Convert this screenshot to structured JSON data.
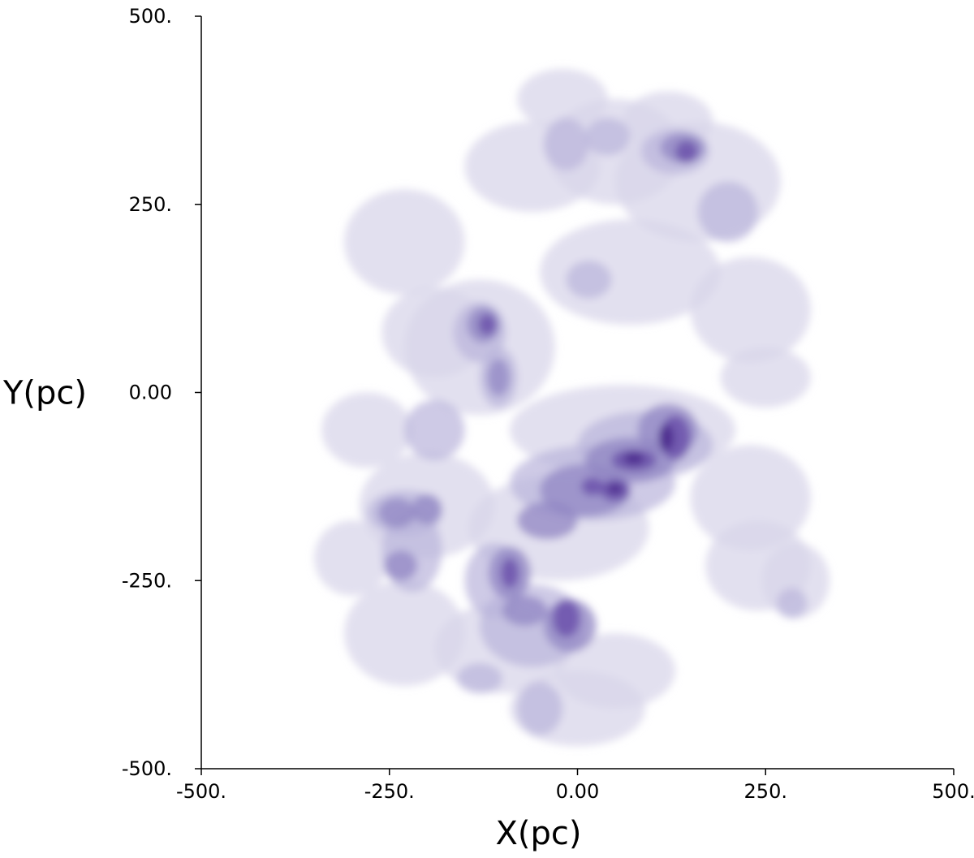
{
  "chart_data": {
    "type": "heatmap",
    "title": "",
    "xlabel": "X(pc)",
    "ylabel": "Y(pc)",
    "xlim": [
      -500,
      500
    ],
    "ylim": [
      -500,
      500
    ],
    "xticks": [
      -500,
      -250,
      0,
      250,
      500
    ],
    "xtick_labels": [
      "-500.",
      "-250.",
      "0.00",
      "250.",
      "500."
    ],
    "yticks": [
      500,
      250,
      0,
      -250,
      -500
    ],
    "ytick_labels": [
      "500.",
      "250.",
      "0.00",
      "-250.",
      "-500."
    ],
    "grid": false,
    "colormap": [
      "#ececec",
      "#d8d6ea",
      "#b9b3dc",
      "#9085c3",
      "#6c54ac",
      "#4d2c8f"
    ],
    "density_levels": [
      1,
      2,
      3,
      4,
      5
    ],
    "blobs": [
      {
        "x": -25,
        "y": -180,
        "sx": 120,
        "sy": 70,
        "level": 1
      },
      {
        "x": 60,
        "y": -50,
        "sx": 150,
        "sy": 60,
        "level": 1
      },
      {
        "x": -200,
        "y": -150,
        "sx": 90,
        "sy": 70,
        "level": 1
      },
      {
        "x": -100,
        "y": -340,
        "sx": 90,
        "sy": 60,
        "level": 1
      },
      {
        "x": -230,
        "y": -320,
        "sx": 80,
        "sy": 70,
        "level": 1
      },
      {
        "x": 50,
        "y": -370,
        "sx": 80,
        "sy": 50,
        "level": 1
      },
      {
        "x": 0,
        "y": -420,
        "sx": 90,
        "sy": 50,
        "level": 1
      },
      {
        "x": -130,
        "y": 60,
        "sx": 100,
        "sy": 90,
        "level": 1
      },
      {
        "x": 70,
        "y": 160,
        "sx": 120,
        "sy": 70,
        "level": 1
      },
      {
        "x": -60,
        "y": 300,
        "sx": 90,
        "sy": 60,
        "level": 1
      },
      {
        "x": 50,
        "y": 320,
        "sx": 90,
        "sy": 70,
        "level": 1
      },
      {
        "x": 160,
        "y": 280,
        "sx": 110,
        "sy": 80,
        "level": 1
      },
      {
        "x": -230,
        "y": 200,
        "sx": 80,
        "sy": 70,
        "level": 1
      },
      {
        "x": -190,
        "y": 80,
        "sx": 70,
        "sy": 60,
        "level": 1
      },
      {
        "x": 230,
        "y": 110,
        "sx": 80,
        "sy": 70,
        "level": 1
      },
      {
        "x": 230,
        "y": -140,
        "sx": 80,
        "sy": 70,
        "level": 1
      },
      {
        "x": 240,
        "y": -230,
        "sx": 70,
        "sy": 60,
        "level": 1
      },
      {
        "x": -280,
        "y": -50,
        "sx": 60,
        "sy": 50,
        "level": 1
      },
      {
        "x": -20,
        "y": 390,
        "sx": 60,
        "sy": 40,
        "level": 1
      },
      {
        "x": 290,
        "y": -250,
        "sx": 45,
        "sy": 50,
        "level": 1
      },
      {
        "x": 250,
        "y": 20,
        "sx": 60,
        "sy": 40,
        "level": 1
      },
      {
        "x": -300,
        "y": -220,
        "sx": 50,
        "sy": 50,
        "level": 1
      },
      {
        "x": 120,
        "y": 360,
        "sx": 60,
        "sy": 40,
        "level": 1
      },
      {
        "x": 20,
        "y": -120,
        "sx": 110,
        "sy": 50,
        "level": 2
      },
      {
        "x": 90,
        "y": -70,
        "sx": 90,
        "sy": 45,
        "level": 2
      },
      {
        "x": -60,
        "y": -310,
        "sx": 70,
        "sy": 55,
        "level": 2
      },
      {
        "x": -110,
        "y": -250,
        "sx": 40,
        "sy": 50,
        "level": 2
      },
      {
        "x": -220,
        "y": -210,
        "sx": 40,
        "sy": 55,
        "level": 2
      },
      {
        "x": -230,
        "y": -160,
        "sx": 50,
        "sy": 30,
        "level": 2
      },
      {
        "x": -190,
        "y": -50,
        "sx": 40,
        "sy": 40,
        "level": 2
      },
      {
        "x": -130,
        "y": 80,
        "sx": 35,
        "sy": 40,
        "level": 2
      },
      {
        "x": -105,
        "y": 20,
        "sx": 25,
        "sy": 40,
        "level": 2
      },
      {
        "x": 130,
        "y": 320,
        "sx": 45,
        "sy": 30,
        "level": 2
      },
      {
        "x": -15,
        "y": 330,
        "sx": 30,
        "sy": 35,
        "level": 2
      },
      {
        "x": 40,
        "y": 340,
        "sx": 30,
        "sy": 25,
        "level": 2
      },
      {
        "x": 200,
        "y": 240,
        "sx": 40,
        "sy": 40,
        "level": 2
      },
      {
        "x": 15,
        "y": 150,
        "sx": 30,
        "sy": 25,
        "level": 2
      },
      {
        "x": -50,
        "y": -420,
        "sx": 30,
        "sy": 35,
        "level": 2
      },
      {
        "x": 285,
        "y": -280,
        "sx": 20,
        "sy": 20,
        "level": 2
      },
      {
        "x": -130,
        "y": -380,
        "sx": 30,
        "sy": 20,
        "level": 2
      },
      {
        "x": 70,
        "y": -90,
        "sx": 60,
        "sy": 30,
        "level": 3
      },
      {
        "x": 120,
        "y": -50,
        "sx": 40,
        "sy": 35,
        "level": 3
      },
      {
        "x": 10,
        "y": -130,
        "sx": 60,
        "sy": 35,
        "level": 3
      },
      {
        "x": -40,
        "y": -170,
        "sx": 40,
        "sy": 25,
        "level": 3
      },
      {
        "x": -90,
        "y": -240,
        "sx": 28,
        "sy": 35,
        "level": 3
      },
      {
        "x": -10,
        "y": -310,
        "sx": 35,
        "sy": 35,
        "level": 3
      },
      {
        "x": -70,
        "y": -290,
        "sx": 30,
        "sy": 20,
        "level": 3
      },
      {
        "x": -240,
        "y": -160,
        "sx": 25,
        "sy": 20,
        "level": 3
      },
      {
        "x": -200,
        "y": -155,
        "sx": 20,
        "sy": 20,
        "level": 3
      },
      {
        "x": -235,
        "y": -230,
        "sx": 22,
        "sy": 20,
        "level": 3
      },
      {
        "x": -125,
        "y": 90,
        "sx": 22,
        "sy": 24,
        "level": 3
      },
      {
        "x": -105,
        "y": 20,
        "sx": 15,
        "sy": 25,
        "level": 3
      },
      {
        "x": 140,
        "y": 325,
        "sx": 30,
        "sy": 20,
        "level": 3
      },
      {
        "x": 130,
        "y": -60,
        "sx": 20,
        "sy": 30,
        "level": 4
      },
      {
        "x": 75,
        "y": -90,
        "sx": 30,
        "sy": 15,
        "level": 4
      },
      {
        "x": 50,
        "y": -130,
        "sx": 20,
        "sy": 15,
        "level": 4
      },
      {
        "x": 20,
        "y": -125,
        "sx": 15,
        "sy": 12,
        "level": 4
      },
      {
        "x": -15,
        "y": -300,
        "sx": 18,
        "sy": 25,
        "level": 4
      },
      {
        "x": -90,
        "y": -240,
        "sx": 12,
        "sy": 20,
        "level": 4
      },
      {
        "x": 145,
        "y": 320,
        "sx": 15,
        "sy": 15,
        "level": 4
      },
      {
        "x": -120,
        "y": 90,
        "sx": 12,
        "sy": 14,
        "level": 4
      },
      {
        "x": 118,
        "y": -60,
        "sx": 10,
        "sy": 18,
        "level": 5
      },
      {
        "x": 75,
        "y": -88,
        "sx": 14,
        "sy": 8,
        "level": 5
      },
      {
        "x": 50,
        "y": -128,
        "sx": 10,
        "sy": 7,
        "level": 5
      }
    ]
  }
}
